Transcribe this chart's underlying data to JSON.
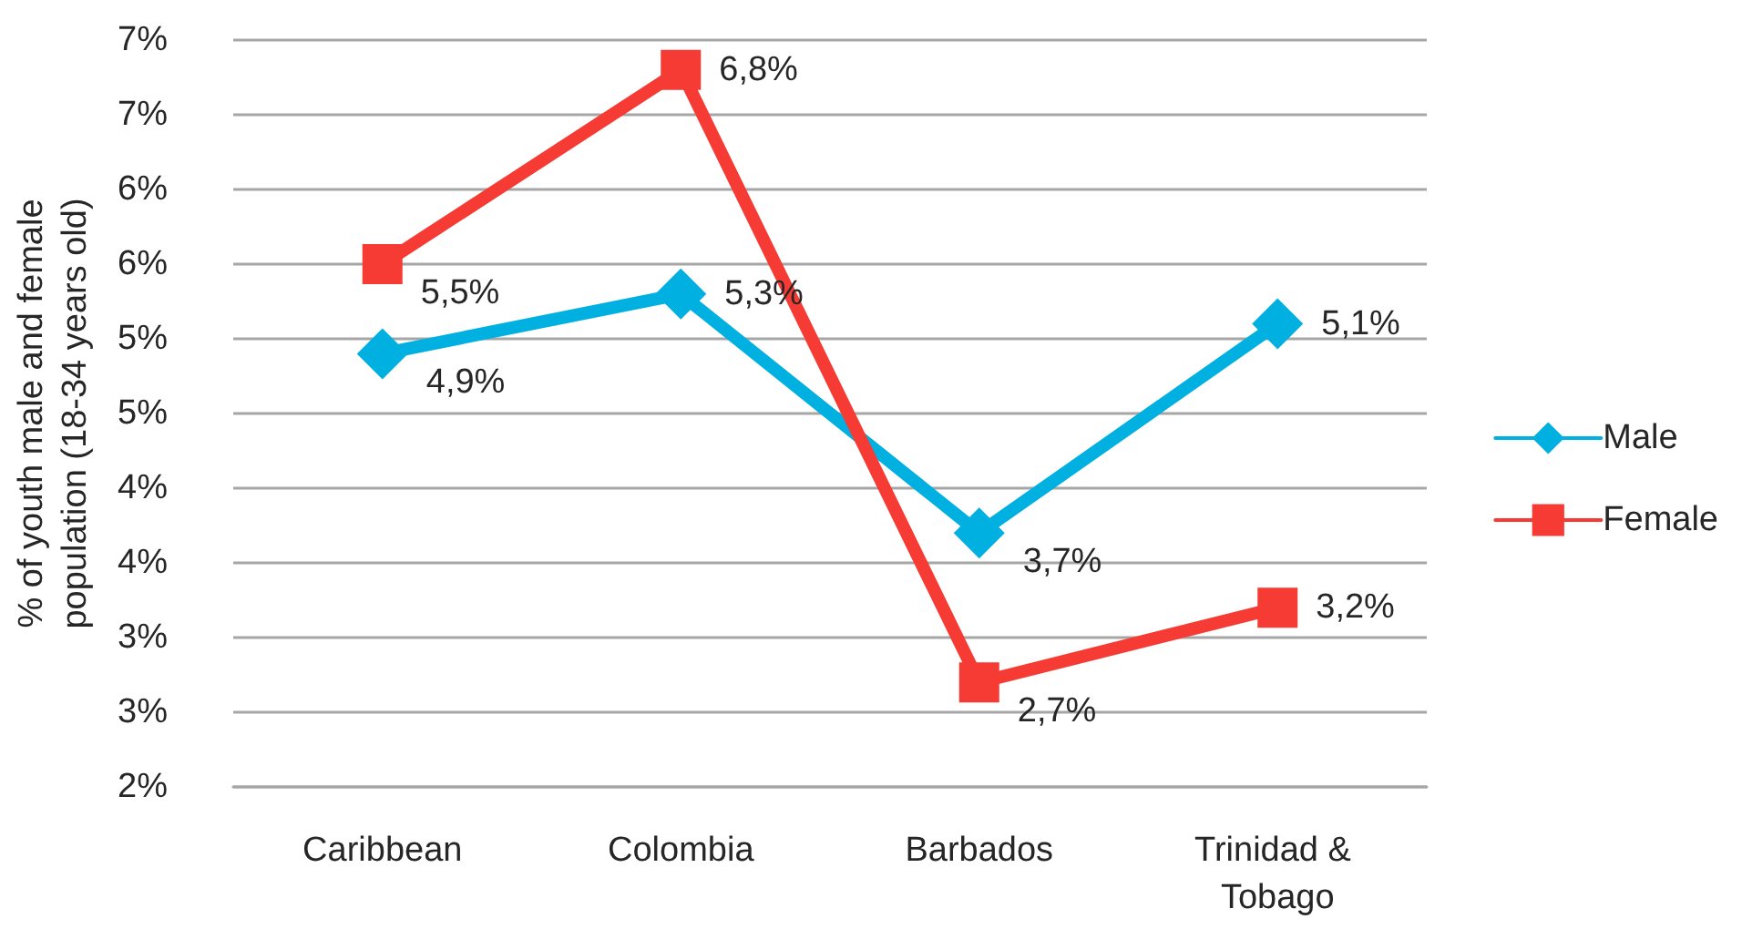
{
  "chart_data": {
    "type": "line",
    "ylabel": "% of youth male and female population (18-34 years old)",
    "categories": [
      "Caribbean",
      "Colombia",
      "Barbados",
      "Trinidad & Tobago"
    ],
    "series": [
      {
        "name": "Male",
        "color": "#00b0e0",
        "marker": "diamond",
        "values": [
          4.9,
          5.3,
          3.7,
          5.1
        ],
        "value_labels": [
          "4,9%",
          "5,3%",
          "3,7%",
          "5,1%"
        ]
      },
      {
        "name": "Female",
        "color": "#f53b33",
        "marker": "square",
        "values": [
          5.5,
          6.8,
          2.7,
          3.2
        ],
        "value_labels": [
          "5,5%",
          "6,8%",
          "2,7%",
          "3,2%"
        ]
      }
    ],
    "ylim": [
      2,
      7
    ],
    "yticks": [
      {
        "value": 2,
        "label": "2%"
      },
      {
        "value": 2.5,
        "label": "3%"
      },
      {
        "value": 3,
        "label": "3%"
      },
      {
        "value": 3.5,
        "label": "4%"
      },
      {
        "value": 4,
        "label": "4%"
      },
      {
        "value": 4.5,
        "label": "5%"
      },
      {
        "value": 5,
        "label": "5%"
      },
      {
        "value": 5.5,
        "label": "6%"
      },
      {
        "value": 6,
        "label": "6%"
      },
      {
        "value": 6.5,
        "label": "7%"
      },
      {
        "value": 7,
        "label": "7%"
      }
    ],
    "grid": "y",
    "legend": "right"
  }
}
